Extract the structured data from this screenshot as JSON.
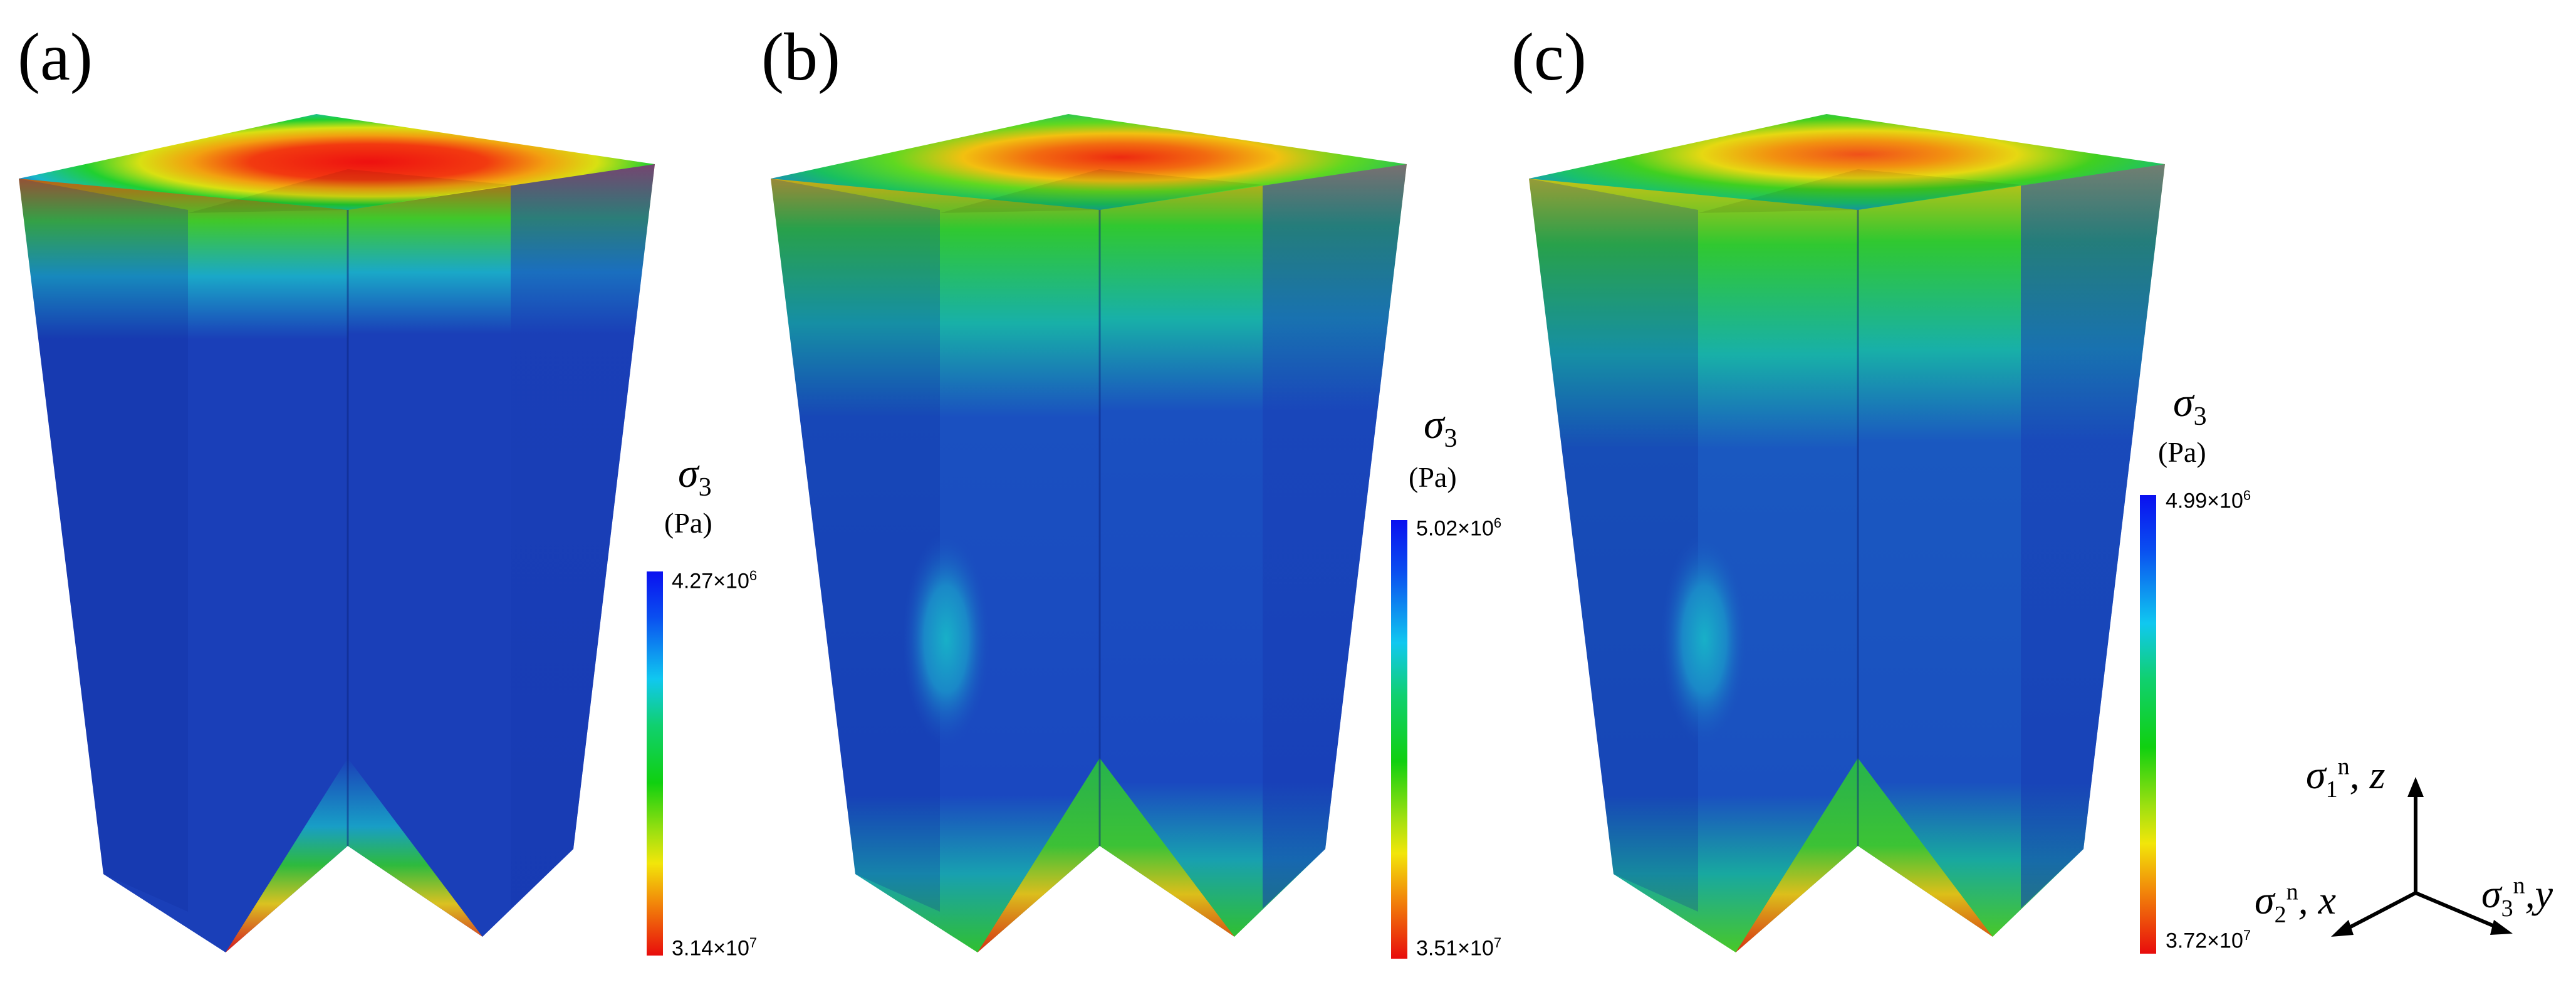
{
  "panels": [
    {
      "label": "(a)",
      "colorbar": {
        "quantity_symbol": "σ",
        "quantity_sub": "3",
        "unit": "(Pa)",
        "top_value": "4.27×10",
        "top_exp": "6",
        "bottom_value": "3.14×10",
        "bottom_exp": "7"
      }
    },
    {
      "label": "(b)",
      "colorbar": {
        "quantity_symbol": "σ",
        "quantity_sub": "3",
        "unit": "(Pa)",
        "top_value": "5.02×10",
        "top_exp": "6",
        "bottom_value": "3.51×10",
        "bottom_exp": "7"
      }
    },
    {
      "label": "(c)",
      "colorbar": {
        "quantity_symbol": "σ",
        "quantity_sub": "3",
        "unit": "(Pa)",
        "top_value": "4.99×10",
        "top_exp": "6",
        "bottom_value": "3.72×10",
        "bottom_exp": "7"
      }
    }
  ],
  "axes": {
    "z": {
      "sym": "σ",
      "sub": "1",
      "sup": "n",
      "axis": "z"
    },
    "x": {
      "sym": "σ",
      "sub": "2",
      "sup": "n",
      "axis": "x"
    },
    "y": {
      "sym": "σ",
      "sub": "3",
      "sup": "n",
      "axis": "y"
    }
  },
  "colors": {
    "low": "#0a1fb0",
    "mid": "#12c81a",
    "high": "#e0140e",
    "cyan": "#18c8e6",
    "yellow": "#f2e20a"
  }
}
